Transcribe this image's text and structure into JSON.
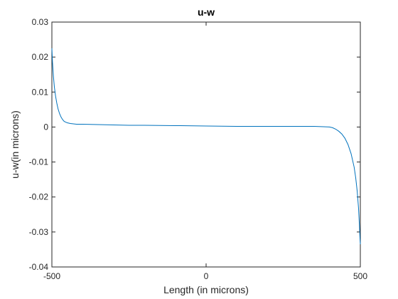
{
  "chart_data": {
    "type": "line",
    "title": "u-w",
    "xlabel": "Length (in microns)",
    "ylabel": "u-w(in microns)",
    "xlim": [
      -500,
      500
    ],
    "ylim": [
      -0.04,
      0.03
    ],
    "xticks": [
      -500,
      0,
      500
    ],
    "xtick_labels": [
      "-500",
      "0",
      "500"
    ],
    "yticks": [
      0.03,
      0.02,
      0.01,
      0,
      -0.01,
      -0.02,
      -0.03,
      -0.04
    ],
    "ytick_labels": [
      "0.03",
      "0.02",
      "0.01",
      "0",
      "-0.01",
      "-0.02",
      "-0.03",
      "-0.04"
    ],
    "grid": false,
    "line_color": "#0072BD",
    "series": [
      {
        "x": [
          -500,
          -498,
          -495,
          -492,
          -488,
          -484,
          -480,
          -475,
          -470,
          -465,
          -460,
          -450,
          -440,
          -430,
          -420,
          -400,
          -350,
          -300,
          -250,
          -200,
          -100,
          0,
          100,
          200,
          300,
          350,
          380,
          400,
          410,
          420,
          430,
          440,
          450,
          460,
          470,
          480,
          485,
          490,
          494,
          497,
          499,
          500
        ],
        "y": [
          0.0225,
          0.0185,
          0.0145,
          0.0115,
          0.0088,
          0.0068,
          0.0052,
          0.0038,
          0.0028,
          0.0021,
          0.0016,
          0.0012,
          0.001,
          0.0009,
          0.0008,
          0.0008,
          0.0007,
          0.0006,
          0.0005,
          0.0005,
          0.0004,
          0.0003,
          0.0002,
          0.0002,
          0.0002,
          0.0002,
          0.0001,
          0.0,
          -0.0002,
          -0.0006,
          -0.0012,
          -0.002,
          -0.0032,
          -0.005,
          -0.0076,
          -0.0115,
          -0.0145,
          -0.0185,
          -0.023,
          -0.028,
          -0.032,
          -0.0335
        ]
      }
    ]
  }
}
